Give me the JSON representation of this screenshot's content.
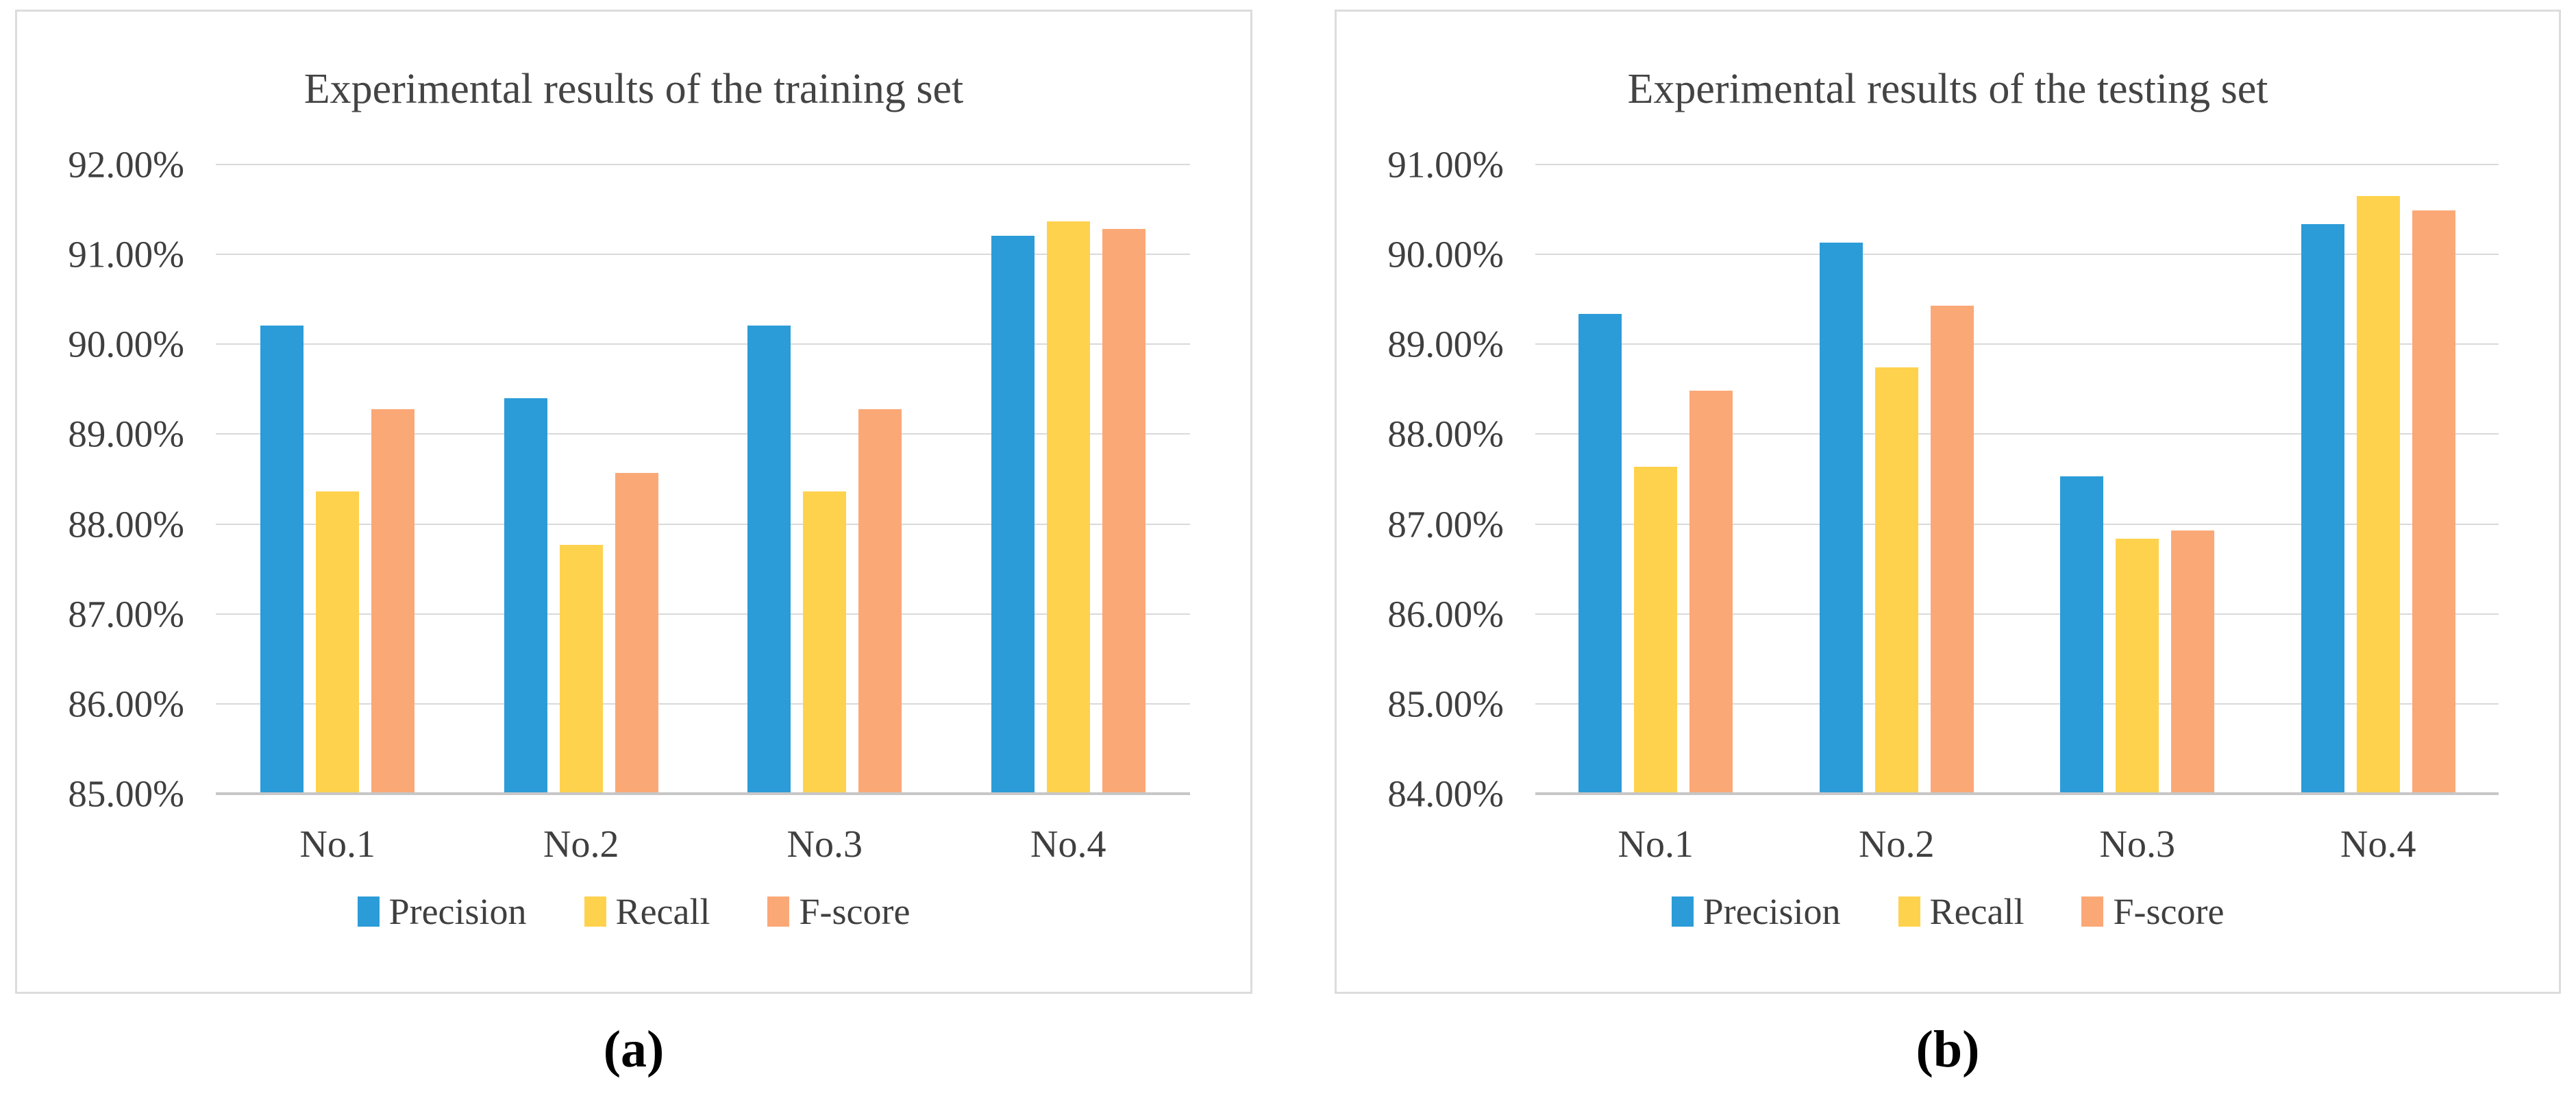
{
  "colors": {
    "precision": "#2b9cd8",
    "recall": "#ffd24e",
    "fscore": "#fba877",
    "gridline": "#d9d9d9",
    "axisline": "#c6c6c6",
    "text": "#3f3f3f"
  },
  "captions": {
    "a": "(a)",
    "b": "(b)"
  },
  "chart_data": [
    {
      "type": "bar",
      "title": "Experimental results of the training set",
      "categories": [
        "No.1",
        "No.2",
        "No.3",
        "No.4"
      ],
      "series": [
        {
          "name": "Precision",
          "color": "#2b9cd8",
          "values": [
            90.21,
            89.4,
            90.21,
            91.21
          ]
        },
        {
          "name": "Recall",
          "color": "#ffd24e",
          "values": [
            88.36,
            87.77,
            88.36,
            91.37
          ]
        },
        {
          "name": "F-score",
          "color": "#fba877",
          "values": [
            89.28,
            88.57,
            89.28,
            91.28
          ]
        }
      ],
      "xlabel": "",
      "ylabel": "",
      "ylim": [
        85,
        92
      ],
      "yticks": [
        92,
        91,
        90,
        89,
        88,
        87,
        86,
        85
      ],
      "ytick_labels": [
        "92.00%",
        "91.00%",
        "90.00%",
        "89.00%",
        "88.00%",
        "87.00%",
        "86.00%",
        "85.00%"
      ],
      "grid": true,
      "legend_position": "bottom",
      "caption": "(a)"
    },
    {
      "type": "bar",
      "title": "Experimental results of the testing set",
      "categories": [
        "No.1",
        "No.2",
        "No.3",
        "No.4"
      ],
      "series": [
        {
          "name": "Precision",
          "color": "#2b9cd8",
          "values": [
            89.34,
            90.13,
            87.53,
            90.34
          ]
        },
        {
          "name": "Recall",
          "color": "#ffd24e",
          "values": [
            87.64,
            88.74,
            86.84,
            90.65
          ]
        },
        {
          "name": "F-score",
          "color": "#fba877",
          "values": [
            88.48,
            89.43,
            86.93,
            90.49
          ]
        }
      ],
      "xlabel": "",
      "ylabel": "",
      "ylim": [
        84,
        91
      ],
      "yticks": [
        91,
        90,
        89,
        88,
        87,
        86,
        85,
        84
      ],
      "ytick_labels": [
        "91.00%",
        "90.00%",
        "89.00%",
        "88.00%",
        "87.00%",
        "86.00%",
        "85.00%",
        "84.00%"
      ],
      "grid": true,
      "legend_position": "bottom",
      "caption": "(b)"
    }
  ]
}
